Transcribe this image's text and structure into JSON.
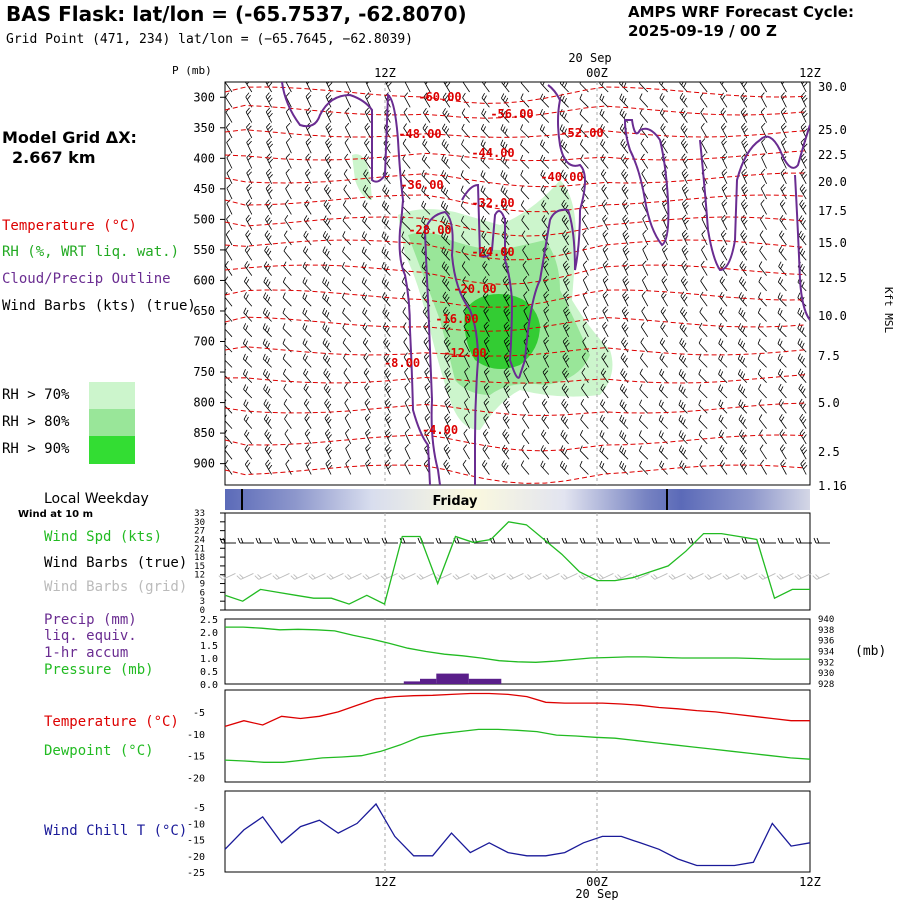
{
  "header": {
    "title": "BAS Flask:  lat/lon = (-65.7537, -62.8070)",
    "subtitle": "Grid Point (471, 234) lat/lon = (−65.7645, −62.8039)",
    "cycle_label": "AMPS WRF Forecast Cycle:",
    "cycle_value": "2025-09-19 / 00  Z"
  },
  "left_panel": {
    "grid_label": "Model Grid ΔX:",
    "grid_value": "2.667 km",
    "temperature_legend": "Temperature (°C)",
    "rh_legend": "RH (%, WRT liq. wat.)",
    "cloud_legend": "Cloud/Precip Outline",
    "wind_legend": "Wind Barbs (kts) (true)",
    "rh_bins": [
      {
        "label": "RH > 70%",
        "color": "#ccf5cc"
      },
      {
        "label": "RH > 80%",
        "color": "#99e699"
      },
      {
        "label": "RH > 90%",
        "color": "#33dd33"
      }
    ],
    "weekday_label": "Local Weekday",
    "wind10_label": "Wind at 10 m",
    "windspd_label": "Wind Spd (kts)",
    "barbs_true_label": "Wind Barbs (true)",
    "barbs_grid_label": "Wind Barbs (grid)",
    "precip_label_1": "Precip (mm)",
    "precip_label_2": "liq. equiv.",
    "precip_label_3": "1-hr accum",
    "pressure_label": "Pressure (mb)",
    "temp2_label": "Temperature (°C)",
    "dew_label": "Dewpoint (°C)",
    "windchill_label": "Wind Chill T (°C)"
  },
  "colors": {
    "temperature": "#dd0000",
    "rh": "#22aa22",
    "cloud": "#6a2c91",
    "windspd": "#22bb22",
    "dewpoint": "#22bb22",
    "precip": "#5a1f8a",
    "windchill": "#1a1a99"
  },
  "chart_data": [
    {
      "type": "heatmap",
      "name": "cross-section",
      "y_axis_label": "P (mb)",
      "p_ticks": [
        "300",
        "350",
        "400",
        "450",
        "500",
        "550",
        "600",
        "650",
        "700",
        "750",
        "800",
        "850",
        "900"
      ],
      "time_ticks_top": [
        "12Z",
        "00Z",
        "12Z"
      ],
      "date_label": "20 Sep",
      "height_ticks": [
        "30.0",
        "25.0",
        "22.5",
        "20.0",
        "17.5",
        "15.0",
        "12.5",
        "10.0",
        "7.5",
        "5.0",
        "2.5",
        "1.16"
      ],
      "height_axis_label": "Kft MSL",
      "temperature_contours": [
        {
          "label": "-60.00"
        },
        {
          "label": "-56.00"
        },
        {
          "label": "-52.00"
        },
        {
          "label": "-48.00"
        },
        {
          "label": "-44.00"
        },
        {
          "label": "-40.00"
        },
        {
          "label": "-36.00"
        },
        {
          "label": "-32.00"
        },
        {
          "label": "-28.00"
        },
        {
          "label": "-24.00"
        },
        {
          "label": "-20.00"
        },
        {
          "label": "-16.00"
        },
        {
          "label": "-12.00"
        },
        {
          "label": "-8.00"
        },
        {
          "label": "-4.00"
        }
      ]
    },
    {
      "type": "bar",
      "name": "weekday",
      "label": "Friday"
    },
    {
      "type": "line",
      "name": "surface-wind",
      "y_ticks": [
        "33",
        "30",
        "27",
        "24",
        "21",
        "18",
        "15",
        "12",
        "9",
        "6",
        "3",
        "0"
      ],
      "ylim": [
        0,
        33
      ],
      "series": [
        {
          "values": [
            5,
            3,
            7,
            6,
            5,
            4,
            4,
            2,
            5,
            2,
            25,
            25,
            9,
            25,
            23,
            24,
            30,
            29,
            24,
            19,
            13,
            10,
            10,
            11,
            13,
            15,
            20,
            26,
            26,
            25,
            24,
            4,
            7,
            7
          ]
        }
      ]
    },
    {
      "type": "line",
      "name": "precip-pressure",
      "y_ticks_left": [
        "2.5",
        "2.0",
        "1.5",
        "1.0",
        "0.5",
        "0.0"
      ],
      "y_ticks_right": [
        "940",
        "938",
        "936",
        "934",
        "932",
        "930",
        "928"
      ],
      "right_unit": "(mb)",
      "ylim_left": [
        0,
        2.5
      ],
      "ylim_right": [
        928,
        940
      ],
      "pressure_values": [
        938.5,
        938.5,
        938.3,
        938.0,
        938.1,
        938.0,
        937.8,
        937.0,
        936.3,
        935.5,
        934.6,
        934.0,
        933.5,
        933.2,
        932.8,
        932.3,
        932.1,
        932.0,
        932.2,
        932.5,
        932.8,
        932.9,
        933.0,
        933.0,
        932.9,
        932.8,
        932.8,
        932.8,
        932.8,
        932.7,
        932.6,
        932.6,
        932.6
      ],
      "precip_bars": [
        {
          "hour": 11,
          "value": 0.1
        },
        {
          "hour": 12,
          "value": 0.2
        },
        {
          "hour": 13,
          "value": 0.4
        },
        {
          "hour": 14,
          "value": 0.4
        },
        {
          "hour": 15,
          "value": 0.2
        },
        {
          "hour": 16,
          "value": 0.2
        }
      ]
    },
    {
      "type": "line",
      "name": "temp-dew",
      "y_ticks": [
        "-5",
        "-10",
        "-15",
        "-20"
      ],
      "ylim": [
        -21,
        0
      ],
      "series": [
        {
          "values": [
            -8.3,
            -7.0,
            -8.0,
            -6.0,
            -6.5,
            -6.0,
            -5.0,
            -3.5,
            -2.0,
            -1.5,
            -1.3,
            -1.2,
            -1.0,
            -0.8,
            -0.8,
            -1.0,
            -1.5,
            -2.8,
            -3.0,
            -3.0,
            -3.0,
            -3.2,
            -3.5,
            -4.0,
            -4.3,
            -4.7,
            -5.0,
            -5.5,
            -6.0,
            -6.5,
            -7.0,
            -7.0
          ]
        },
        {
          "values": [
            -16.0,
            -16.2,
            -16.5,
            -16.5,
            -16.0,
            -15.5,
            -15.3,
            -15.0,
            -14.0,
            -12.5,
            -10.7,
            -10.0,
            -9.5,
            -9.0,
            -9.0,
            -9.2,
            -9.5,
            -10.3,
            -10.5,
            -10.8,
            -11.0,
            -11.5,
            -12.0,
            -12.5,
            -13.0,
            -13.5,
            -14.0,
            -14.5,
            -15.0,
            -15.5,
            -15.8
          ]
        }
      ]
    },
    {
      "type": "line",
      "name": "wind-chill",
      "y_ticks": [
        "-5",
        "-10",
        "-15",
        "-20",
        "-25"
      ],
      "ylim": [
        -25,
        0
      ],
      "x_ticks_bottom": [
        "12Z",
        "00Z",
        "12Z"
      ],
      "date_label": "20 Sep",
      "series": [
        {
          "values": [
            -18,
            -12,
            -8,
            -16,
            -11,
            -9,
            -13,
            -10,
            -4,
            -14,
            -20,
            -20,
            -13,
            -19,
            -16,
            -19,
            -20,
            -20,
            -19,
            -16,
            -14,
            -14,
            -16,
            -18,
            -21,
            -23,
            -23,
            -23,
            -22,
            -10,
            -17,
            -16
          ]
        }
      ]
    }
  ]
}
